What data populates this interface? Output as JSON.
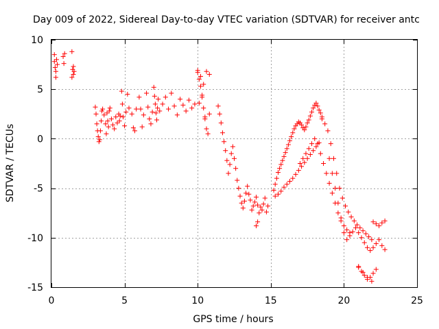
{
  "chart_data": {
    "type": "scatter",
    "title": "Day 009 of 2022, Sidereal Day-to-day VTEC variation (SDTVAR) for receiver antc",
    "xlabel": "GPS time / hours",
    "ylabel": "SDTVAR / TECUs",
    "xlim": [
      0,
      25
    ],
    "ylim": [
      -15,
      10
    ],
    "xticks": [
      0,
      5,
      10,
      15,
      20,
      25
    ],
    "yticks": [
      -15,
      -10,
      -5,
      0,
      5,
      10
    ],
    "xtick_labels": [
      "0",
      "5",
      "10",
      "15",
      "20",
      "25"
    ],
    "ytick_labels": [
      "-15",
      "-10",
      "-5",
      "0",
      "5",
      "10"
    ],
    "grid": true,
    "marker": "plus",
    "color": "#ff0000",
    "series": [
      {
        "name": "SDTVAR",
        "x": [
          0.2,
          0.2,
          0.25,
          0.3,
          0.3,
          0.35,
          0.4,
          0.8,
          0.85,
          0.9,
          1.4,
          1.45,
          1.5,
          1.4,
          1.5,
          1.55,
          3.0,
          3.05,
          3.1,
          3.15,
          3.2,
          3.25,
          3.3,
          3.35,
          3.4,
          3.45,
          3.5,
          3.6,
          3.7,
          3.75,
          3.8,
          3.85,
          3.9,
          3.95,
          4.0,
          4.1,
          4.2,
          4.3,
          4.4,
          4.5,
          4.6,
          4.65,
          4.7,
          4.8,
          4.85,
          4.9,
          5.0,
          5.1,
          5.2,
          5.3,
          5.5,
          5.6,
          5.7,
          5.8,
          6.0,
          6.1,
          6.2,
          6.3,
          6.5,
          6.6,
          6.7,
          6.8,
          6.9,
          7.0,
          7.05,
          7.1,
          7.15,
          7.2,
          7.25,
          7.3,
          7.4,
          7.6,
          7.8,
          8.0,
          8.2,
          8.4,
          8.6,
          8.8,
          9.0,
          9.2,
          9.4,
          9.6,
          9.8,
          10.0,
          10.1,
          10.2,
          10.3,
          10.4,
          10.5,
          10.6,
          10.7,
          10.8,
          10.0,
          10.2,
          10.4,
          10.6,
          10.8,
          10.1,
          10.3,
          10.5,
          11.4,
          11.5,
          11.6,
          11.7,
          11.8,
          11.9,
          12.0,
          12.1,
          12.2,
          12.3,
          12.4,
          12.5,
          12.6,
          12.7,
          12.8,
          12.9,
          13.0,
          13.1,
          13.2,
          13.3,
          13.4,
          13.5,
          13.6,
          13.7,
          13.8,
          13.9,
          14.0,
          14.1,
          14.2,
          14.3,
          14.4,
          14.5,
          14.6,
          14.7,
          14.8,
          14.0,
          14.1,
          15.2,
          15.3,
          15.4,
          15.5,
          15.6,
          15.7,
          15.8,
          15.9,
          16.0,
          16.1,
          16.2,
          16.3,
          16.4,
          16.5,
          16.6,
          16.7,
          16.8,
          16.9,
          17.0,
          17.1,
          17.2,
          17.3,
          17.4,
          17.5,
          17.6,
          17.7,
          17.8,
          17.9,
          18.0,
          18.1,
          18.2,
          18.3,
          18.4,
          18.5,
          15.3,
          15.5,
          15.7,
          15.9,
          16.1,
          16.3,
          16.5,
          16.7,
          16.9,
          17.1,
          17.3,
          17.5,
          17.7,
          17.9,
          18.1,
          18.3,
          17.0,
          17.2,
          17.4,
          17.6,
          17.8,
          18.0,
          18.2,
          18.4,
          18.6,
          18.8,
          19.0,
          19.2,
          19.4,
          19.6,
          19.8,
          20.0,
          20.2,
          20.4,
          18.5,
          18.7,
          18.9,
          19.1,
          19.3,
          19.5,
          19.7,
          19.9,
          20.1,
          20.3,
          20.5,
          20.7,
          20.9,
          21.1,
          21.3,
          21.5,
          21.7,
          21.9,
          19.0,
          19.2,
          19.4,
          19.6,
          19.8,
          20.0,
          20.2,
          20.4,
          20.6,
          20.8,
          21.0,
          21.2,
          21.4,
          21.6,
          21.8,
          22.0,
          22.2,
          22.4,
          22.6,
          22.8,
          22.0,
          22.2,
          22.4,
          22.6,
          22.8,
          21.0,
          21.2,
          21.4,
          21.6,
          21.8,
          22.0,
          22.2,
          21.0,
          21.3,
          21.6,
          21.9
        ],
        "y": [
          8.5,
          7.8,
          7.2,
          6.8,
          6.2,
          8.0,
          7.5,
          8.3,
          7.6,
          8.6,
          8.8,
          7.0,
          6.5,
          6.2,
          7.3,
          6.8,
          3.2,
          2.5,
          1.5,
          0.8,
          0.2,
          -0.3,
          -0.1,
          0.8,
          1.8,
          2.8,
          3.0,
          2.4,
          1.5,
          0.5,
          2.6,
          1.8,
          1.2,
          2.8,
          3.1,
          2.0,
          1.4,
          1.0,
          2.2,
          1.6,
          2.5,
          1.8,
          2.3,
          4.8,
          3.5,
          2.2,
          1.3,
          2.7,
          4.5,
          3.1,
          2.5,
          1.1,
          0.8,
          3.0,
          4.2,
          3.0,
          1.2,
          2.4,
          4.6,
          3.2,
          2.0,
          1.5,
          2.7,
          5.2,
          4.3,
          3.5,
          2.6,
          1.9,
          3.1,
          4.0,
          2.8,
          3.5,
          4.2,
          3.0,
          4.6,
          3.3,
          2.4,
          4.0,
          3.4,
          2.8,
          3.9,
          3.1,
          3.5,
          6.9,
          6.0,
          5.3,
          4.2,
          3.1,
          2.0,
          1.0,
          0.5,
          2.5,
          6.7,
          6.3,
          5.5,
          6.8,
          6.5,
          3.6,
          4.4,
          2.2,
          3.3,
          2.5,
          1.6,
          0.6,
          -0.3,
          -1.2,
          -2.2,
          -3.5,
          -2.6,
          -1.5,
          -0.8,
          -2.0,
          -3.0,
          -4.2,
          -5.0,
          -5.8,
          -6.5,
          -7.0,
          -6.3,
          -5.5,
          -4.8,
          -5.6,
          -6.2,
          -7.2,
          -6.8,
          -6.4,
          -5.9,
          -6.7,
          -7.5,
          -6.9,
          -7.2,
          -6.6,
          -6.0,
          -7.4,
          -6.8,
          -8.8,
          -8.4,
          -5.2,
          -4.6,
          -4.0,
          -3.4,
          -3.0,
          -2.6,
          -2.2,
          -1.8,
          -1.4,
          -1.0,
          -0.6,
          -0.2,
          0.2,
          0.6,
          1.0,
          1.3,
          1.5,
          1.7,
          1.6,
          1.4,
          1.1,
          0.9,
          1.2,
          1.6,
          1.9,
          2.3,
          2.7,
          3.1,
          3.4,
          3.6,
          3.3,
          2.9,
          2.6,
          2.2,
          -5.8,
          -5.6,
          -5.3,
          -4.9,
          -4.6,
          -4.3,
          -4.0,
          -3.6,
          -3.2,
          -2.8,
          -2.4,
          -2.0,
          -1.6,
          -1.2,
          -0.8,
          -0.4,
          -2.5,
          -2.0,
          -1.5,
          -1.0,
          -0.5,
          0.0,
          -0.5,
          -1.5,
          -2.5,
          -3.5,
          -4.5,
          -5.5,
          -6.5,
          -7.5,
          -8.3,
          -8.8,
          -9.2,
          -9.5,
          2.0,
          1.5,
          0.8,
          -0.5,
          -2.0,
          -3.5,
          -5.0,
          -6.0,
          -6.8,
          -7.4,
          -7.9,
          -8.3,
          -8.7,
          -9.0,
          -9.3,
          -9.6,
          -9.9,
          -10.2,
          -2.0,
          -3.5,
          -5.0,
          -6.5,
          -8.0,
          -9.5,
          -10.2,
          -9.8,
          -9.4,
          -9.0,
          -9.5,
          -10.0,
          -10.5,
          -11.0,
          -11.3,
          -11.0,
          -10.6,
          -10.2,
          -10.8,
          -11.2,
          -8.4,
          -8.6,
          -8.8,
          -8.5,
          -8.3,
          -13.0,
          -13.4,
          -13.8,
          -14.2,
          -14.0,
          -13.6,
          -13.2,
          -12.9,
          -13.5,
          -14.0,
          -14.4
        ]
      }
    ]
  }
}
